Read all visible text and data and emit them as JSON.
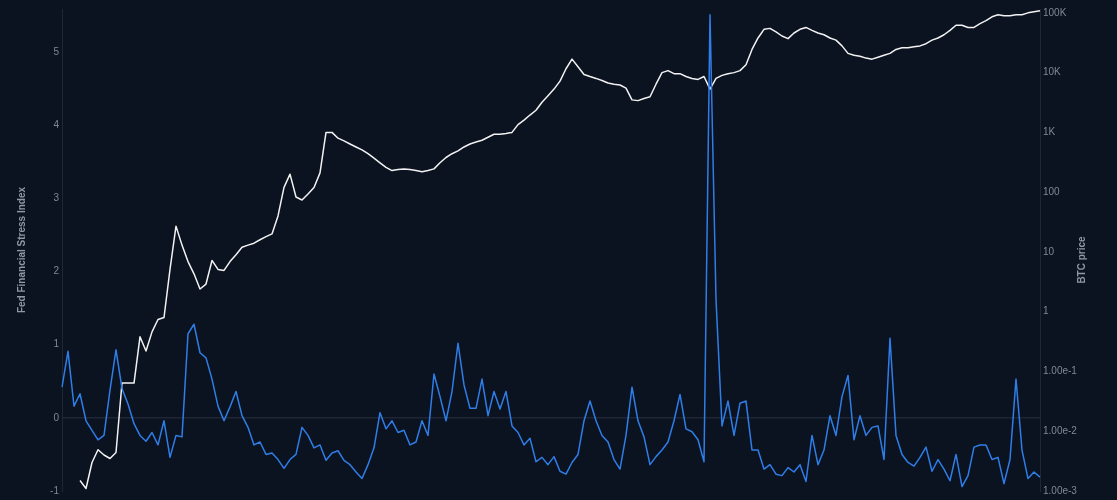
{
  "chart_data": {
    "type": "line",
    "ylabel": "Fed Financial Stress Index",
    "y2label": "BTC price",
    "categories": [
      null,
      null,
      null,
      null,
      null,
      null,
      null,
      null,
      null,
      null,
      null,
      null,
      null,
      null,
      null,
      null,
      null,
      null,
      null,
      null,
      null,
      null,
      null,
      null,
      null,
      null,
      null,
      null,
      null,
      null,
      null,
      null,
      null,
      null,
      null,
      null,
      null,
      null,
      null,
      null,
      null,
      null,
      null,
      null,
      null,
      null,
      null,
      null,
      null,
      null,
      null,
      null,
      null,
      null,
      null,
      null,
      null,
      null,
      null,
      null,
      null,
      null,
      null,
      null,
      null,
      null,
      null,
      null,
      null,
      null,
      null,
      null,
      null,
      null,
      null,
      null,
      null,
      null,
      null,
      null,
      null,
      null,
      null,
      null,
      null,
      null,
      null,
      null,
      null,
      null,
      null,
      null,
      null,
      null,
      null,
      null,
      null,
      null,
      null,
      null,
      null,
      null,
      null,
      null,
      null,
      null,
      null,
      null,
      null,
      null,
      null,
      null,
      null,
      null,
      null,
      null,
      null,
      null,
      null,
      null,
      null,
      null,
      null,
      null,
      null,
      null,
      null,
      null,
      null,
      null,
      null,
      null,
      null,
      null,
      null,
      null,
      null,
      null,
      null,
      null,
      null,
      null,
      null,
      null,
      null,
      null,
      null,
      null,
      null,
      null,
      null,
      null,
      null,
      null,
      null,
      null,
      null,
      null,
      null,
      null,
      null,
      null,
      null,
      null
    ],
    "series": [
      {
        "color": "#2f7ee8",
        "values": [
          0.42,
          0.91,
          0.16,
          0.33,
          -0.04,
          -0.17,
          -0.3,
          -0.24,
          0.38,
          0.93,
          0.4,
          0.19,
          -0.08,
          -0.24,
          -0.32,
          -0.2,
          -0.37,
          -0.04,
          -0.54,
          -0.24,
          -0.26,
          1.15,
          1.28,
          0.89,
          0.82,
          0.53,
          0.16,
          -0.04,
          0.15,
          0.36,
          0.03,
          -0.13,
          -0.37,
          -0.33,
          -0.5,
          -0.48,
          -0.57,
          -0.69,
          -0.57,
          -0.5,
          -0.13,
          -0.24,
          -0.41,
          -0.37,
          -0.58,
          -0.48,
          -0.45,
          -0.58,
          -0.64,
          -0.74,
          -0.83,
          -0.64,
          -0.41,
          0.07,
          -0.15,
          -0.04,
          -0.2,
          -0.17,
          -0.37,
          -0.33,
          -0.04,
          -0.24,
          0.6,
          0.29,
          -0.04,
          0.36,
          1.02,
          0.45,
          0.13,
          0.13,
          0.53,
          0.03,
          0.36,
          0.12,
          0.36,
          -0.11,
          -0.2,
          -0.37,
          -0.28,
          -0.6,
          -0.54,
          -0.64,
          -0.53,
          -0.73,
          -0.77,
          -0.61,
          -0.5,
          -0.04,
          0.23,
          -0.04,
          -0.24,
          -0.33,
          -0.57,
          -0.7,
          -0.24,
          0.42,
          -0.04,
          -0.26,
          -0.64,
          -0.53,
          -0.44,
          -0.33,
          -0.04,
          0.32,
          -0.15,
          -0.19,
          -0.3,
          -0.6,
          5.51,
          1.62,
          -0.11,
          0.23,
          -0.24,
          0.2,
          0.23,
          -0.44,
          -0.44,
          -0.7,
          -0.64,
          -0.77,
          -0.79,
          -0.68,
          -0.74,
          -0.64,
          -0.87,
          -0.24,
          -0.64,
          -0.44,
          0.03,
          -0.24,
          0.29,
          0.58,
          -0.3,
          0.03,
          -0.24,
          -0.13,
          -0.11,
          -0.57,
          1.09,
          -0.24,
          -0.5,
          -0.61,
          -0.66,
          -0.54,
          -0.4,
          -0.73,
          -0.57,
          -0.7,
          -0.86,
          -0.5,
          -0.94,
          -0.79,
          -0.4,
          -0.37,
          -0.37,
          -0.57,
          -0.54,
          -0.9,
          -0.57,
          0.53,
          -0.44,
          -0.83,
          -0.74,
          -0.81
        ]
      },
      {
        "color": "#f2f2f2",
        "axis": "y2",
        "values": [
          null,
          null,
          null,
          0.0015,
          0.0011,
          0.003,
          0.0049,
          0.004,
          0.0035,
          0.0044,
          0.064,
          0.064,
          0.064,
          0.38,
          0.22,
          0.46,
          0.74,
          0.8,
          5.1,
          27,
          13,
          6.9,
          4.3,
          2.4,
          2.9,
          7.2,
          5.1,
          4.9,
          6.9,
          9,
          12,
          13,
          14,
          16,
          18,
          20,
          40,
          120,
          200,
          83,
          74,
          93,
          120,
          210,
          1000,
          1000,
          800,
          720,
          640,
          570,
          510,
          440,
          370,
          310,
          260,
          230,
          240,
          245,
          240,
          230,
          220,
          230,
          245,
          310,
          380,
          440,
          490,
          570,
          640,
          690,
          740,
          830,
          930,
          930,
          960,
          1000,
          1350,
          1600,
          1950,
          2350,
          3200,
          4100,
          5300,
          7200,
          11600,
          16800,
          12500,
          9300,
          8600,
          8000,
          7400,
          6700,
          6400,
          6200,
          5500,
          3500,
          3400,
          3700,
          3950,
          6400,
          10000,
          10800,
          9600,
          9600,
          8600,
          8000,
          7700,
          8600,
          5300,
          8000,
          9000,
          9600,
          10000,
          10800,
          13500,
          24400,
          38000,
          53000,
          55000,
          48000,
          41000,
          37000,
          46000,
          53000,
          57000,
          51000,
          46000,
          43000,
          38000,
          35000,
          28000,
          21000,
          19500,
          18800,
          17500,
          16800,
          18100,
          19500,
          21000,
          24400,
          26000,
          26000,
          27000,
          28000,
          30500,
          35000,
          38000,
          43000,
          51000,
          62000,
          62000,
          57000,
          57000,
          66000,
          74000,
          86000,
          93000,
          89500,
          89500,
          93000,
          93000,
          100000,
          104000,
          108000
        ]
      }
    ],
    "ylim": [
      -1,
      5.59
    ],
    "yticks": [
      -1,
      0,
      1,
      2,
      3,
      4,
      5
    ],
    "y2lim": [
      0.001,
      116000
    ],
    "y2ticks": [
      {
        "value": 0.001,
        "label": "1.00e-3"
      },
      {
        "value": 0.01,
        "label": "1.00e-2"
      },
      {
        "value": 0.1,
        "label": "1.00e-1"
      },
      1,
      10,
      100,
      {
        "value": 1000,
        "label": "1K"
      },
      {
        "value": 10000,
        "label": "10K"
      },
      {
        "value": 100000,
        "label": "100K"
      }
    ],
    "log": "y2",
    "grid": false,
    "legend": false,
    "marker": "none",
    "line_style": "solid",
    "ref_lines": [
      {
        "axis": "y",
        "value": 0,
        "color": "#2a3242"
      }
    ]
  }
}
